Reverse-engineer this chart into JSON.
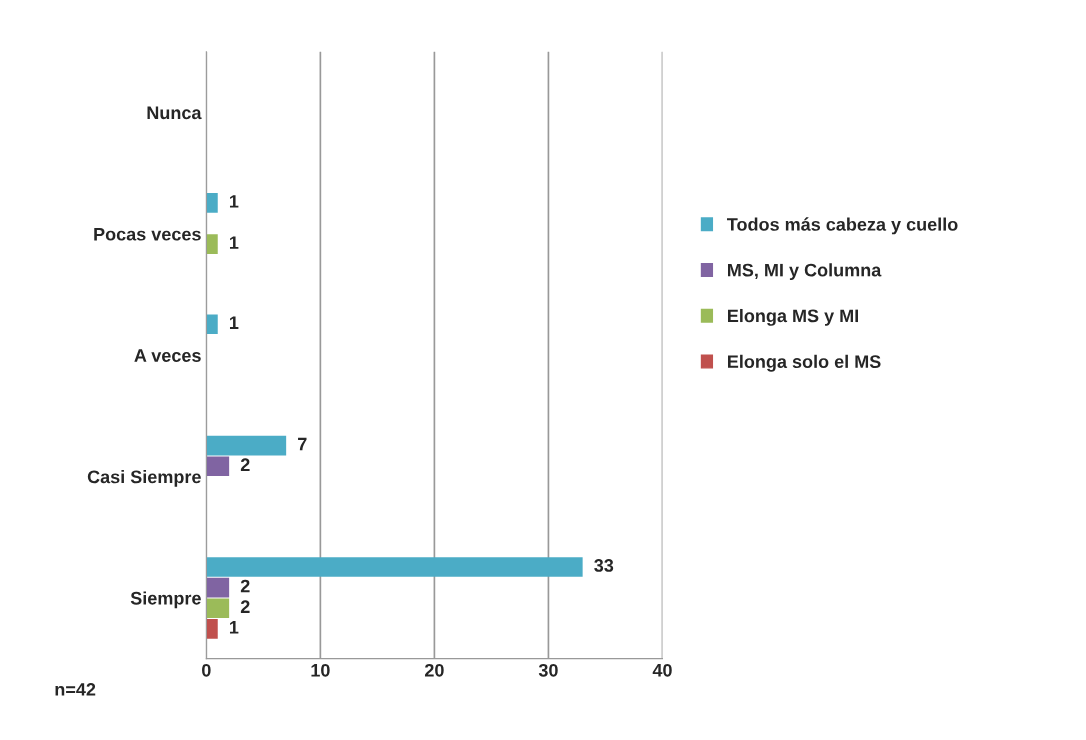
{
  "chart_data": {
    "type": "bar",
    "orientation": "horizontal",
    "categories": [
      "Nunca",
      "Pocas veces",
      "A veces",
      "Casi Siempre",
      "Siempre"
    ],
    "series": [
      {
        "name": "Todos más cabeza y cuello",
        "color": "#4bacc6",
        "values": [
          null,
          1,
          1,
          7,
          33
        ]
      },
      {
        "name": "MS, MI y Columna",
        "color": "#8064a2",
        "values": [
          null,
          null,
          null,
          2,
          2
        ]
      },
      {
        "name": "Elonga MS y MI",
        "color": "#9bbb59",
        "values": [
          null,
          1,
          null,
          null,
          2
        ]
      },
      {
        "name": "Elonga solo el MS",
        "color": "#c0504d",
        "values": [
          null,
          null,
          null,
          null,
          1
        ]
      }
    ],
    "xlim": [
      0,
      40
    ],
    "xticks": [
      0,
      10,
      20,
      30,
      40
    ],
    "grid": "x",
    "legend": "right",
    "data_labels": true,
    "annotations": [
      "n=42"
    ]
  }
}
